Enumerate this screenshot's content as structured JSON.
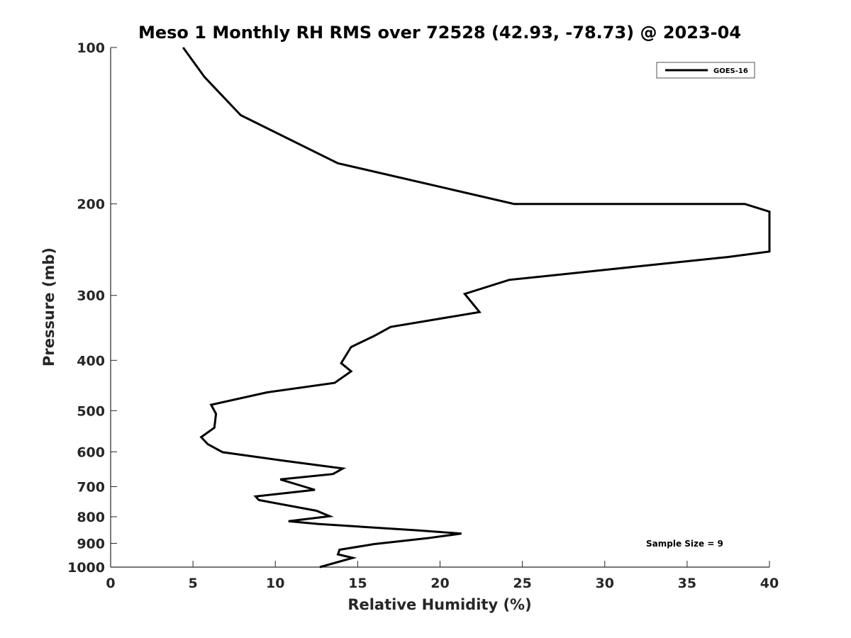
{
  "chart_data": {
    "type": "line",
    "title": "Meso 1 Monthly RH RMS over 72528 (42.93, -78.73) @ 2023-04",
    "xlabel": "Relative Humidity (%)",
    "ylabel": "Pressure (mb)",
    "xlim": [
      0,
      40
    ],
    "ylim": [
      100,
      1000
    ],
    "y_scale": "log",
    "y_reversed": true,
    "grid": false,
    "legend_position": "top-right",
    "x_ticks": [
      0,
      5,
      10,
      15,
      20,
      25,
      30,
      35,
      40
    ],
    "x_tick_labels": [
      "0",
      "5",
      "10",
      "15",
      "20",
      "25",
      "30",
      "35",
      "40"
    ],
    "y_ticks": [
      100,
      200,
      300,
      400,
      500,
      600,
      700,
      800,
      900,
      1000
    ],
    "y_tick_labels": [
      "100",
      "200",
      "300",
      "400",
      "500",
      "600",
      "700",
      "800",
      "900",
      "1000"
    ],
    "annotation": "Sample Size = 9",
    "series": [
      {
        "name": "GOES-16",
        "color": "#000000",
        "points": [
          [
            4.4,
            100
          ],
          [
            5.7,
            114
          ],
          [
            7.9,
            135
          ],
          [
            13.8,
            167
          ],
          [
            24.5,
            200
          ],
          [
            38.5,
            200
          ],
          [
            40.0,
            207
          ],
          [
            40.0,
            247
          ],
          [
            37.5,
            253
          ],
          [
            24.2,
            280
          ],
          [
            21.5,
            298
          ],
          [
            22.4,
            323
          ],
          [
            17.0,
            345
          ],
          [
            16.0,
            359
          ],
          [
            14.6,
            377
          ],
          [
            14.0,
            405
          ],
          [
            14.6,
            420
          ],
          [
            13.6,
            442
          ],
          [
            9.5,
            461
          ],
          [
            6.1,
            487
          ],
          [
            6.4,
            507
          ],
          [
            6.3,
            539
          ],
          [
            5.5,
            562
          ],
          [
            5.9,
            580
          ],
          [
            6.8,
            601
          ],
          [
            10.5,
            624
          ],
          [
            14.1,
            646
          ],
          [
            13.5,
            662
          ],
          [
            10.3,
            678
          ],
          [
            12.4,
            710
          ],
          [
            8.8,
            731
          ],
          [
            9.0,
            743
          ],
          [
            12.5,
            779
          ],
          [
            13.3,
            798
          ],
          [
            10.8,
            816
          ],
          [
            12.6,
            826
          ],
          [
            18.7,
            850
          ],
          [
            21.3,
            862
          ],
          [
            19.2,
            880
          ],
          [
            16.0,
            903
          ],
          [
            13.9,
            926
          ],
          [
            13.8,
            945
          ],
          [
            14.7,
            960
          ],
          [
            12.7,
            1000
          ]
        ]
      }
    ]
  }
}
